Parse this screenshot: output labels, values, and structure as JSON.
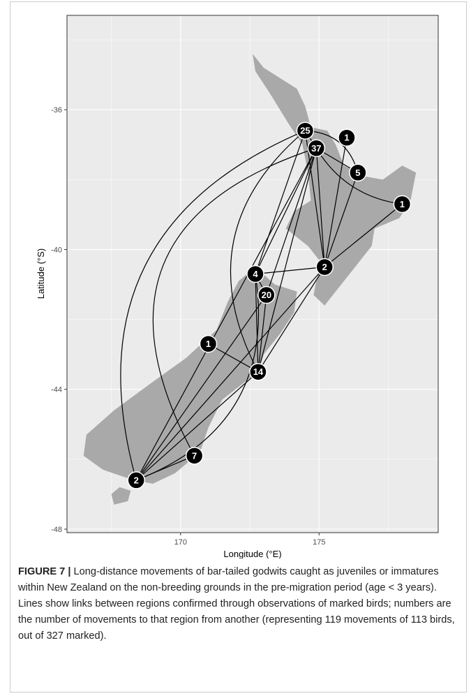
{
  "chart_data": {
    "type": "network-map",
    "xlabel": "Longitude (°E)",
    "ylabel": "Latitude (°S)",
    "xlim": [
      165.9,
      179.3
    ],
    "ylim": [
      -48.1,
      -33.3
    ],
    "x_ticks": [
      {
        "value": 170,
        "label": "170"
      },
      {
        "value": 175,
        "label": "175"
      }
    ],
    "y_ticks": [
      {
        "value": -36,
        "label": "-36"
      },
      {
        "value": -40,
        "label": "-40"
      },
      {
        "value": -44,
        "label": "-44"
      },
      {
        "value": -48,
        "label": "-48"
      }
    ],
    "grid": true,
    "colors": {
      "panel": "#ebebeb",
      "grid": "#ffffff",
      "land": "#a9a9a9",
      "node": "#000000",
      "edge": "#000000"
    },
    "nodes": [
      {
        "id": "n25",
        "lon": 174.5,
        "lat": -36.6,
        "value": 25
      },
      {
        "id": "n1ne",
        "lon": 176.0,
        "lat": -36.8,
        "value": 1
      },
      {
        "id": "n37",
        "lon": 174.9,
        "lat": -37.1,
        "value": 37
      },
      {
        "id": "n5",
        "lon": 176.4,
        "lat": -37.8,
        "value": 5
      },
      {
        "id": "n1e",
        "lon": 178.0,
        "lat": -38.7,
        "value": 1
      },
      {
        "id": "n2n",
        "lon": 175.2,
        "lat": -40.5,
        "value": 2
      },
      {
        "id": "n4",
        "lon": 172.7,
        "lat": -40.7,
        "value": 4
      },
      {
        "id": "n20",
        "lon": 173.1,
        "lat": -41.3,
        "value": 20
      },
      {
        "id": "n1w",
        "lon": 171.0,
        "lat": -42.7,
        "value": 1
      },
      {
        "id": "n14",
        "lon": 172.8,
        "lat": -43.5,
        "value": 14
      },
      {
        "id": "n7",
        "lon": 170.5,
        "lat": -45.9,
        "value": 7
      },
      {
        "id": "n2s",
        "lon": 168.4,
        "lat": -46.6,
        "value": 2
      }
    ],
    "edges": [
      {
        "from": "n25",
        "to": "n37",
        "curve": 0
      },
      {
        "from": "n25",
        "to": "n2n",
        "curve": 0
      },
      {
        "from": "n25",
        "to": "n4",
        "curve": 0
      },
      {
        "from": "n25",
        "to": "n14",
        "curve": 0.2
      },
      {
        "from": "n25",
        "to": "n2s",
        "curve": 0.22
      },
      {
        "from": "n25",
        "to": "n5",
        "curve": -0.18
      },
      {
        "from": "n37",
        "to": "n2n",
        "curve": 0
      },
      {
        "from": "n37",
        "to": "n5",
        "curve": 0
      },
      {
        "from": "n37",
        "to": "n1e",
        "curve": 0.12
      },
      {
        "from": "n37",
        "to": "n4",
        "curve": 0
      },
      {
        "from": "n37",
        "to": "n14",
        "curve": 0
      },
      {
        "from": "n37",
        "to": "n20",
        "curve": 0
      },
      {
        "from": "n37",
        "to": "n7",
        "curve": 0.3
      },
      {
        "from": "n37",
        "to": "n2s",
        "curve": 0
      },
      {
        "from": "n1ne",
        "to": "n2n",
        "curve": 0
      },
      {
        "from": "n5",
        "to": "n2n",
        "curve": 0
      },
      {
        "from": "n1e",
        "to": "n2n",
        "curve": 0
      },
      {
        "from": "n2n",
        "to": "n4",
        "curve": 0
      },
      {
        "from": "n2n",
        "to": "n14",
        "curve": 0
      },
      {
        "from": "n2n",
        "to": "n2s",
        "curve": 0
      },
      {
        "from": "n4",
        "to": "n14",
        "curve": 0
      },
      {
        "from": "n4",
        "to": "n20",
        "curve": 0
      },
      {
        "from": "n20",
        "to": "n14",
        "curve": 0
      },
      {
        "from": "n20",
        "to": "n2s",
        "curve": 0
      },
      {
        "from": "n1w",
        "to": "n14",
        "curve": 0
      },
      {
        "from": "n14",
        "to": "n2s",
        "curve": 0
      },
      {
        "from": "n7",
        "to": "n2s",
        "curve": 0
      },
      {
        "from": "n4",
        "to": "n2s",
        "curve": -0.2
      }
    ],
    "land": {
      "north_island": [
        [
          172.6,
          -34.4
        ],
        [
          173.0,
          -34.8
        ],
        [
          173.6,
          -35.1
        ],
        [
          174.2,
          -35.4
        ],
        [
          174.5,
          -35.9
        ],
        [
          174.7,
          -36.5
        ],
        [
          175.3,
          -36.6
        ],
        [
          175.6,
          -37.0
        ],
        [
          175.9,
          -37.6
        ],
        [
          176.6,
          -37.9
        ],
        [
          177.3,
          -38.0
        ],
        [
          178.0,
          -37.6
        ],
        [
          178.5,
          -37.8
        ],
        [
          178.3,
          -38.6
        ],
        [
          177.9,
          -39.1
        ],
        [
          177.0,
          -39.4
        ],
        [
          176.9,
          -39.9
        ],
        [
          176.2,
          -40.6
        ],
        [
          175.5,
          -41.3
        ],
        [
          175.2,
          -41.6
        ],
        [
          174.8,
          -41.3
        ],
        [
          174.9,
          -40.9
        ],
        [
          175.1,
          -40.4
        ],
        [
          174.6,
          -39.9
        ],
        [
          173.8,
          -39.4
        ],
        [
          174.1,
          -38.9
        ],
        [
          174.7,
          -38.6
        ],
        [
          174.6,
          -37.8
        ],
        [
          174.4,
          -37.0
        ],
        [
          173.9,
          -36.4
        ],
        [
          173.2,
          -35.5
        ],
        [
          172.7,
          -34.9
        ]
      ],
      "south_island": [
        [
          172.7,
          -40.5
        ],
        [
          173.4,
          -41.0
        ],
        [
          174.2,
          -41.2
        ],
        [
          174.1,
          -41.8
        ],
        [
          173.6,
          -42.4
        ],
        [
          173.0,
          -43.0
        ],
        [
          172.8,
          -43.5
        ],
        [
          172.3,
          -43.8
        ],
        [
          171.5,
          -44.3
        ],
        [
          171.0,
          -45.1
        ],
        [
          170.7,
          -45.8
        ],
        [
          169.8,
          -46.4
        ],
        [
          169.0,
          -46.7
        ],
        [
          168.3,
          -46.6
        ],
        [
          167.2,
          -46.3
        ],
        [
          166.5,
          -45.9
        ],
        [
          166.6,
          -45.3
        ],
        [
          167.6,
          -44.6
        ],
        [
          168.8,
          -43.9
        ],
        [
          170.2,
          -43.1
        ],
        [
          171.3,
          -42.3
        ],
        [
          171.7,
          -41.5
        ],
        [
          172.1,
          -40.9
        ]
      ],
      "stewart_island": [
        [
          167.8,
          -46.8
        ],
        [
          168.2,
          -46.9
        ],
        [
          168.1,
          -47.2
        ],
        [
          167.6,
          -47.3
        ],
        [
          167.5,
          -47.0
        ]
      ]
    }
  },
  "caption": {
    "figure_label": "FIGURE 7 |",
    "text": " Long-distance movements of bar-tailed godwits caught as juveniles or immatures within New Zealand on the non-breeding grounds in the pre-migration period (age < 3 years). Lines show links between regions confirmed through observations of marked birds; numbers are the number of movements to that region from another (representing 119 movements of 113 birds, out of 327 marked)."
  }
}
